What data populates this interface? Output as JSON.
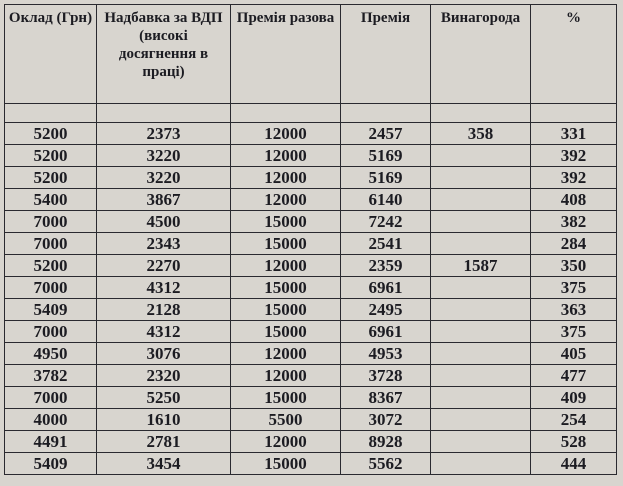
{
  "table": {
    "header": [
      "Оклад (Грн)",
      "Надбавка за ВДП (високі досягнення в праці)",
      "Премія разова",
      "Премія",
      "Винагорода",
      "%"
    ],
    "rows": [
      [
        5200,
        2373,
        12000,
        2457,
        358,
        331
      ],
      [
        5200,
        3220,
        12000,
        5169,
        null,
        392
      ],
      [
        5200,
        3220,
        12000,
        5169,
        null,
        392
      ],
      [
        5400,
        3867,
        12000,
        6140,
        null,
        408
      ],
      [
        7000,
        4500,
        15000,
        7242,
        null,
        382
      ],
      [
        7000,
        2343,
        15000,
        2541,
        null,
        284
      ],
      [
        5200,
        2270,
        12000,
        2359,
        1587,
        350
      ],
      [
        7000,
        4312,
        15000,
        6961,
        null,
        375
      ],
      [
        5409,
        2128,
        15000,
        2495,
        null,
        363
      ],
      [
        7000,
        4312,
        15000,
        6961,
        null,
        375
      ],
      [
        4950,
        3076,
        12000,
        4953,
        null,
        405
      ],
      [
        3782,
        2320,
        12000,
        3728,
        null,
        477
      ],
      [
        7000,
        5250,
        15000,
        8367,
        null,
        409
      ],
      [
        4000,
        1610,
        5500,
        3072,
        null,
        254
      ],
      [
        4491,
        2781,
        12000,
        8928,
        null,
        528
      ],
      [
        5409,
        3454,
        15000,
        5562,
        null,
        444
      ]
    ]
  }
}
